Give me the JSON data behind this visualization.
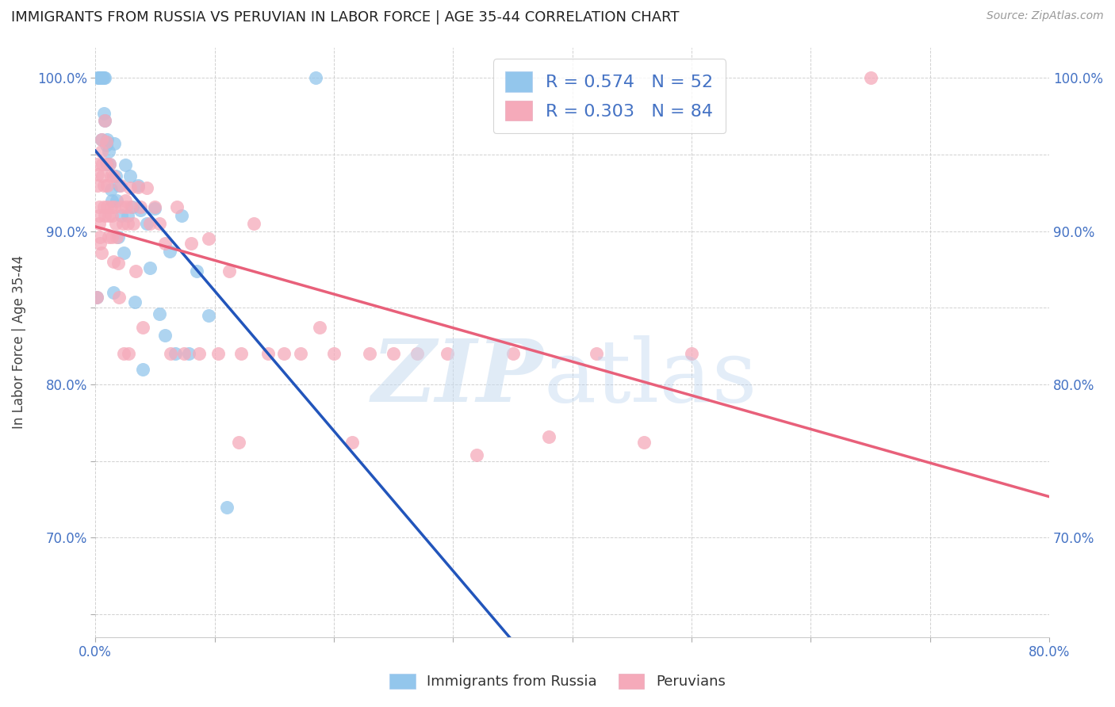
{
  "title": "IMMIGRANTS FROM RUSSIA VS PERUVIAN IN LABOR FORCE | AGE 35-44 CORRELATION CHART",
  "source": "Source: ZipAtlas.com",
  "ylabel": "In Labor Force | Age 35-44",
  "xlim": [
    0.0,
    0.8
  ],
  "ylim": [
    0.635,
    1.02
  ],
  "xticks": [
    0.0,
    0.1,
    0.2,
    0.3,
    0.4,
    0.5,
    0.6,
    0.7,
    0.8
  ],
  "xticklabels": [
    "0.0%",
    "",
    "",
    "",
    "",
    "",
    "",
    "",
    "80.0%"
  ],
  "yticks": [
    0.65,
    0.7,
    0.75,
    0.8,
    0.85,
    0.9,
    0.95,
    1.0
  ],
  "yticklabels": [
    "",
    "70.0%",
    "",
    "80.0%",
    "",
    "90.0%",
    "",
    "100.0%"
  ],
  "russia_color": "#93C6EC",
  "peru_color": "#F5AABA",
  "russia_R": 0.574,
  "russia_N": 52,
  "peru_R": 0.303,
  "peru_N": 84,
  "russia_line_color": "#2255BB",
  "peru_line_color": "#E8607A",
  "russia_x": [
    0.001,
    0.002,
    0.003,
    0.003,
    0.004,
    0.004,
    0.005,
    0.005,
    0.005,
    0.006,
    0.006,
    0.007,
    0.007,
    0.008,
    0.008,
    0.009,
    0.009,
    0.01,
    0.01,
    0.011,
    0.012,
    0.013,
    0.014,
    0.015,
    0.016,
    0.017,
    0.018,
    0.019,
    0.02,
    0.022,
    0.024,
    0.025,
    0.027,
    0.029,
    0.031,
    0.033,
    0.036,
    0.038,
    0.04,
    0.043,
    0.046,
    0.05,
    0.054,
    0.058,
    0.062,
    0.067,
    0.072,
    0.078,
    0.085,
    0.095,
    0.11,
    0.185
  ],
  "russia_y": [
    0.857,
    1.0,
    1.0,
    1.0,
    1.0,
    1.0,
    1.0,
    1.0,
    0.96,
    1.0,
    1.0,
    1.0,
    0.977,
    1.0,
    0.972,
    0.958,
    0.956,
    0.944,
    0.96,
    0.952,
    0.944,
    0.927,
    0.92,
    0.86,
    0.957,
    0.936,
    0.92,
    0.896,
    0.93,
    0.91,
    0.886,
    0.943,
    0.91,
    0.936,
    0.916,
    0.854,
    0.93,
    0.914,
    0.81,
    0.905,
    0.876,
    0.915,
    0.846,
    0.832,
    0.887,
    0.82,
    0.91,
    0.82,
    0.874,
    0.845,
    0.72,
    1.0
  ],
  "peru_x": [
    0.001,
    0.001,
    0.002,
    0.002,
    0.003,
    0.003,
    0.003,
    0.004,
    0.004,
    0.005,
    0.005,
    0.005,
    0.006,
    0.006,
    0.007,
    0.007,
    0.008,
    0.008,
    0.009,
    0.009,
    0.01,
    0.01,
    0.011,
    0.011,
    0.012,
    0.013,
    0.013,
    0.014,
    0.014,
    0.015,
    0.015,
    0.016,
    0.017,
    0.018,
    0.019,
    0.02,
    0.021,
    0.022,
    0.023,
    0.024,
    0.025,
    0.026,
    0.027,
    0.028,
    0.029,
    0.03,
    0.032,
    0.034,
    0.036,
    0.038,
    0.04,
    0.043,
    0.046,
    0.05,
    0.054,
    0.058,
    0.063,
    0.068,
    0.074,
    0.08,
    0.087,
    0.095,
    0.103,
    0.112,
    0.122,
    0.133,
    0.145,
    0.158,
    0.172,
    0.188,
    0.2,
    0.215,
    0.23,
    0.25,
    0.27,
    0.295,
    0.32,
    0.35,
    0.38,
    0.42,
    0.46,
    0.5,
    0.12,
    0.65
  ],
  "peru_y": [
    0.857,
    0.944,
    0.937,
    0.93,
    0.916,
    0.91,
    0.905,
    0.896,
    0.892,
    0.886,
    0.96,
    0.952,
    0.944,
    0.936,
    0.93,
    0.916,
    0.91,
    0.972,
    0.958,
    0.944,
    0.93,
    0.916,
    0.91,
    0.896,
    0.944,
    0.936,
    0.916,
    0.91,
    0.896,
    0.88,
    0.936,
    0.916,
    0.905,
    0.896,
    0.879,
    0.857,
    0.93,
    0.916,
    0.905,
    0.82,
    0.92,
    0.916,
    0.905,
    0.82,
    0.928,
    0.916,
    0.905,
    0.874,
    0.929,
    0.916,
    0.837,
    0.928,
    0.905,
    0.916,
    0.905,
    0.892,
    0.82,
    0.916,
    0.82,
    0.892,
    0.82,
    0.895,
    0.82,
    0.874,
    0.82,
    0.905,
    0.82,
    0.82,
    0.82,
    0.837,
    0.82,
    0.762,
    0.82,
    0.82,
    0.82,
    0.82,
    0.754,
    0.82,
    0.766,
    0.82,
    0.762,
    0.82,
    0.762,
    1.0
  ]
}
